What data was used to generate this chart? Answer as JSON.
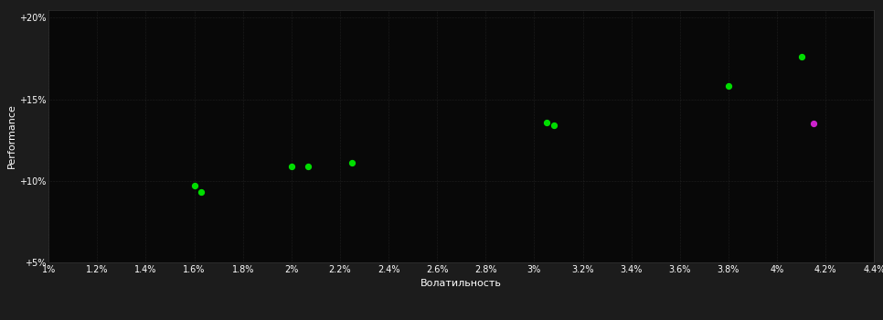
{
  "background_color": "#1c1c1c",
  "plot_bg_color": "#080808",
  "grid_color": "#333333",
  "text_color": "#ffffff",
  "xlabel": "Волатильность",
  "ylabel": "Performance",
  "xlim": [
    0.01,
    0.044
  ],
  "ylim": [
    0.05,
    0.205
  ],
  "xticks": [
    0.01,
    0.012,
    0.014,
    0.016,
    0.018,
    0.02,
    0.022,
    0.024,
    0.026,
    0.028,
    0.03,
    0.032,
    0.034,
    0.036,
    0.038,
    0.04,
    0.042,
    0.044
  ],
  "yticks": [
    0.05,
    0.1,
    0.15,
    0.2
  ],
  "green_points": [
    [
      0.016,
      0.097
    ],
    [
      0.0163,
      0.093
    ],
    [
      0.02,
      0.109
    ],
    [
      0.0207,
      0.109
    ],
    [
      0.0225,
      0.111
    ],
    [
      0.0305,
      0.136
    ],
    [
      0.0308,
      0.134
    ],
    [
      0.038,
      0.158
    ],
    [
      0.041,
      0.176
    ]
  ],
  "magenta_points": [
    [
      0.0415,
      0.135
    ]
  ],
  "point_size": 18,
  "font_size_ticks": 7,
  "font_size_labels": 8
}
